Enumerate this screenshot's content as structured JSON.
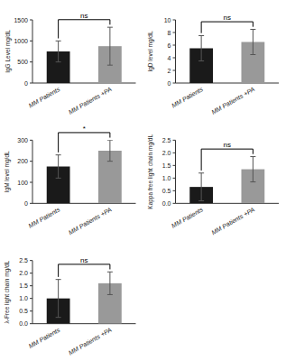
{
  "chart_data": [
    {
      "type": "bar",
      "ylabel": "IgG Level mg/dL",
      "categories": [
        "MM Patients",
        "MM Patients +PA"
      ],
      "values": [
        750,
        875
      ],
      "errors": [
        250,
        450
      ],
      "colors": [
        "#1a1a1a",
        "#999999"
      ],
      "ylim": [
        0,
        1500
      ],
      "yticks": [
        0,
        500,
        1000,
        1500
      ],
      "annotation": "ns"
    },
    {
      "type": "bar",
      "ylabel": "IgD level mg/dL",
      "categories": [
        "MM Patients",
        "MM Patients +PA"
      ],
      "values": [
        5.5,
        6.5
      ],
      "errors": [
        2.0,
        2.0
      ],
      "colors": [
        "#1a1a1a",
        "#999999"
      ],
      "ylim": [
        0,
        10
      ],
      "yticks": [
        0,
        2,
        4,
        6,
        8,
        10
      ],
      "annotation": "ns"
    },
    {
      "type": "bar",
      "ylabel": "IgM level mg/dL",
      "categories": [
        "MM Patients",
        "MM Patients +PA"
      ],
      "values": [
        175,
        250
      ],
      "errors": [
        55,
        50
      ],
      "colors": [
        "#1a1a1a",
        "#999999"
      ],
      "ylim": [
        0,
        300
      ],
      "yticks": [
        0,
        100,
        200,
        300
      ],
      "annotation": "*"
    },
    {
      "type": "bar",
      "ylabel": "Kappa free light chain mg/dL",
      "categories": [
        "MM Patients",
        "MM Patients +PA"
      ],
      "values": [
        0.65,
        1.35
      ],
      "errors": [
        0.55,
        0.5
      ],
      "colors": [
        "#1a1a1a",
        "#999999"
      ],
      "ylim": [
        0.0,
        2.5
      ],
      "yticks": [
        {
          "value": 0.0,
          "label": "0.0"
        },
        0.5,
        {
          "value": 1.0,
          "label": "1.0"
        },
        1.5,
        {
          "value": 2.0,
          "label": "2.0"
        },
        2.5
      ],
      "annotation": "ns"
    },
    {
      "type": "bar",
      "ylabel": "λ-Free light chain mg/dL",
      "categories": [
        "MM Patients",
        "MM Patients +PA"
      ],
      "values": [
        1.0,
        1.6
      ],
      "errors": [
        0.75,
        0.45
      ],
      "colors": [
        "#1a1a1a",
        "#999999"
      ],
      "ylim": [
        0.0,
        2.5
      ],
      "yticks": [
        {
          "value": 0.0,
          "label": "0.0"
        },
        0.5,
        {
          "value": 1.0,
          "label": "1.0"
        },
        1.5,
        {
          "value": 2.0,
          "label": "2.0"
        },
        2.5
      ],
      "annotation": "ns"
    }
  ]
}
